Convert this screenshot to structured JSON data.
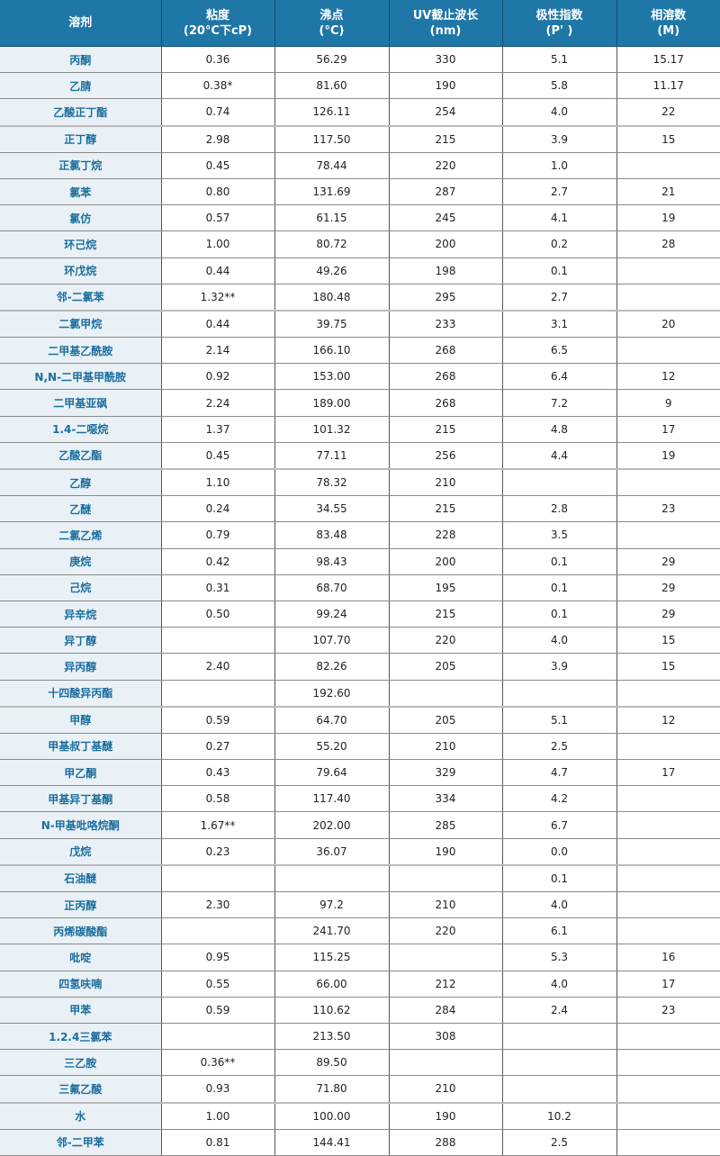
{
  "header": [
    "溶剂",
    "粘度\n(20°C下cP)",
    "沸点\n(°C)",
    "UV截止波长\n(nm)",
    "极性指数\n(P' )",
    "相溶数\n(M)"
  ],
  "colors": {
    "header_bg": "#1f77a7",
    "first_col_bg": "#e9f1f6",
    "first_col_text": "#1c6e9e"
  },
  "rows": [
    [
      "丙酮",
      "0.36",
      "56.29",
      "330",
      "5.1",
      "15.17"
    ],
    [
      "乙腈",
      "0.38*",
      "81.60",
      "190",
      "5.8",
      "11.17"
    ],
    [
      "乙酸正丁酯",
      "0.74",
      "126.11",
      "254",
      "4.0",
      "22"
    ],
    [
      "正丁醇",
      "2.98",
      "117.50",
      "215",
      "3.9",
      "15"
    ],
    [
      "正氯丁烷",
      "0.45",
      "78.44",
      "220",
      "1.0",
      ""
    ],
    [
      "氯苯",
      "0.80",
      "131.69",
      "287",
      "2.7",
      "21"
    ],
    [
      "氯仿",
      "0.57",
      "61.15",
      "245",
      "4.1",
      "19"
    ],
    [
      "环己烷",
      "1.00",
      "80.72",
      "200",
      "0.2",
      "28"
    ],
    [
      "环戊烷",
      "0.44",
      "49.26",
      "198",
      "0.1",
      ""
    ],
    [
      "邻-二氯苯",
      "1.32**",
      "180.48",
      "295",
      "2.7",
      ""
    ],
    [
      "二氯甲烷",
      "0.44",
      "39.75",
      "233",
      "3.1",
      "20"
    ],
    [
      "二甲基乙酰胺",
      "2.14",
      "166.10",
      "268",
      "6.5",
      ""
    ],
    [
      "N,N-二甲基甲酰胺",
      "0.92",
      "153.00",
      "268",
      "6.4",
      "12"
    ],
    [
      "二甲基亚砜",
      "2.24",
      "189.00",
      "268",
      "7.2",
      "9"
    ],
    [
      "1.4-二噁烷",
      "1.37",
      "101.32",
      "215",
      "4.8",
      "17"
    ],
    [
      "乙酸乙酯",
      "0.45",
      "77.11",
      "256",
      "4.4",
      "19"
    ],
    [
      "乙醇",
      "1.10",
      "78.32",
      "210",
      "",
      ""
    ],
    [
      "乙醚",
      "0.24",
      "34.55",
      "215",
      "2.8",
      "23"
    ],
    [
      "二氯乙烯",
      "0.79",
      "83.48",
      "228",
      "3.5",
      ""
    ],
    [
      "庚烷",
      "0.42",
      "98.43",
      "200",
      "0.1",
      "29"
    ],
    [
      "己烷",
      "0.31",
      "68.70",
      "195",
      "0.1",
      "29"
    ],
    [
      "异辛烷",
      "0.50",
      "99.24",
      "215",
      "0.1",
      "29"
    ],
    [
      "异丁醇",
      "",
      "107.70",
      "220",
      "4.0",
      "15"
    ],
    [
      "异丙醇",
      "2.40",
      "82.26",
      "205",
      "3.9",
      "15"
    ],
    [
      "十四酸异丙酯",
      "",
      "192.60",
      "",
      "",
      ""
    ],
    [
      "甲醇",
      "0.59",
      "64.70",
      "205",
      "5.1",
      "12"
    ],
    [
      "甲基叔丁基醚",
      "0.27",
      "55.20",
      "210",
      "2.5",
      ""
    ],
    [
      "甲乙酮",
      "0.43",
      "79.64",
      "329",
      "4.7",
      "17"
    ],
    [
      "甲基异丁基酮",
      "0.58",
      "117.40",
      "334",
      "4.2",
      ""
    ],
    [
      "N-甲基吡咯烷酮",
      "1.67**",
      "202.00",
      "285",
      "6.7",
      ""
    ],
    [
      "戊烷",
      "0.23",
      "36.07",
      "190",
      "0.0",
      ""
    ],
    [
      "石油醚",
      "",
      "",
      "",
      "0.1",
      ""
    ],
    [
      "正丙醇",
      "2.30",
      "97.2",
      "210",
      "4.0",
      ""
    ],
    [
      "丙烯碳酸酯",
      "",
      "241.70",
      "220",
      "6.1",
      ""
    ],
    [
      "吡啶",
      "0.95",
      "115.25",
      "",
      "5.3",
      "16"
    ],
    [
      "四氢呋喃",
      "0.55",
      "66.00",
      "212",
      "4.0",
      "17"
    ],
    [
      "甲苯",
      "0.59",
      "110.62",
      "284",
      "2.4",
      "23"
    ],
    [
      "1.2.4三氯苯",
      "",
      "213.50",
      "308",
      "",
      ""
    ],
    [
      "三乙胺",
      "0.36**",
      "89.50",
      "",
      "",
      ""
    ],
    [
      "三氟乙酸",
      "0.93",
      "71.80",
      "210",
      "",
      ""
    ],
    [
      "水",
      "1.00",
      "100.00",
      "190",
      "10.2",
      ""
    ],
    [
      "邻-二甲苯",
      "0.81",
      "144.41",
      "288",
      "2.5",
      ""
    ]
  ]
}
